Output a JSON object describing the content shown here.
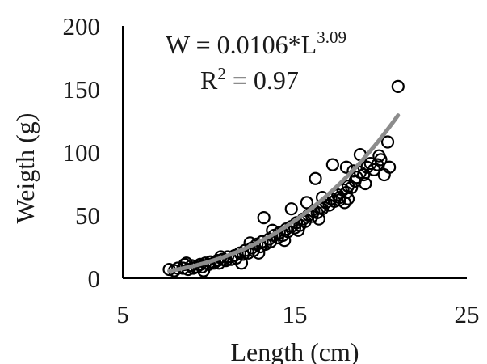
{
  "chart_data": {
    "type": "scatter",
    "xlabel": "Length (cm)",
    "ylabel": "Weigth (g)",
    "xlim": [
      5,
      25
    ],
    "ylim": [
      0,
      200
    ],
    "x_ticks": [
      "5",
      "15",
      "25"
    ],
    "y_ticks": [
      "0",
      "50",
      "100",
      "150",
      "200"
    ],
    "grid": false,
    "annotations": {
      "equation_base": "W = 0.0106*L",
      "equation_exponent": "3.09",
      "r2_base": "R",
      "r2_exponent": "2",
      "r2_value": " = 0.97"
    },
    "fit": {
      "type": "power",
      "a": 0.0106,
      "b": 3.09,
      "x_range": [
        7.7,
        21.0
      ],
      "color": "#8c8c8c"
    },
    "series": [
      {
        "marker": "open-circle",
        "color": "#000000",
        "points": [
          [
            7.7,
            7
          ],
          [
            8.0,
            6
          ],
          [
            8.2,
            8
          ],
          [
            8.5,
            8
          ],
          [
            8.6,
            11
          ],
          [
            8.8,
            7
          ],
          [
            9.0,
            10
          ],
          [
            9.1,
            8
          ],
          [
            9.3,
            9
          ],
          [
            9.5,
            11
          ],
          [
            9.6,
            9
          ],
          [
            9.8,
            12
          ],
          [
            10.0,
            11
          ],
          [
            10.1,
            13
          ],
          [
            10.3,
            12
          ],
          [
            10.5,
            14
          ],
          [
            10.6,
            12
          ],
          [
            10.8,
            15
          ],
          [
            11.0,
            14
          ],
          [
            11.1,
            17
          ],
          [
            11.3,
            15
          ],
          [
            11.5,
            18
          ],
          [
            11.6,
            16
          ],
          [
            11.8,
            20
          ],
          [
            12.0,
            19
          ],
          [
            12.1,
            22
          ],
          [
            12.3,
            20
          ],
          [
            12.5,
            24
          ],
          [
            12.6,
            22
          ],
          [
            12.8,
            27
          ],
          [
            13.0,
            25
          ],
          [
            13.1,
            29
          ],
          [
            13.3,
            27
          ],
          [
            13.5,
            31
          ],
          [
            13.6,
            29
          ],
          [
            13.8,
            34
          ],
          [
            14.0,
            32
          ],
          [
            14.1,
            36
          ],
          [
            14.3,
            34
          ],
          [
            14.5,
            39
          ],
          [
            14.6,
            37
          ],
          [
            14.8,
            41
          ],
          [
            15.0,
            40
          ],
          [
            15.1,
            44
          ],
          [
            15.3,
            42
          ],
          [
            15.5,
            47
          ],
          [
            15.6,
            45
          ],
          [
            15.8,
            50
          ],
          [
            16.0,
            49
          ],
          [
            16.1,
            53
          ],
          [
            16.3,
            52
          ],
          [
            16.5,
            56
          ],
          [
            16.6,
            55
          ],
          [
            16.8,
            60
          ],
          [
            17.0,
            58
          ],
          [
            17.1,
            63
          ],
          [
            17.3,
            61
          ],
          [
            17.5,
            66
          ],
          [
            17.6,
            64
          ],
          [
            17.8,
            70
          ],
          [
            18.0,
            68
          ],
          [
            18.1,
            73
          ],
          [
            18.3,
            72
          ],
          [
            18.5,
            77
          ],
          [
            18.6,
            80
          ],
          [
            18.8,
            84
          ],
          [
            19.0,
            82
          ],
          [
            19.2,
            88
          ],
          [
            19.4,
            91
          ],
          [
            19.6,
            86
          ],
          [
            19.8,
            90
          ],
          [
            20.0,
            94
          ],
          [
            13.2,
            48
          ],
          [
            16.2,
            79
          ],
          [
            17.2,
            90
          ],
          [
            18.0,
            88
          ],
          [
            17.6,
            62
          ],
          [
            18.1,
            63
          ],
          [
            18.8,
            98
          ],
          [
            16.6,
            64
          ],
          [
            14.8,
            55
          ],
          [
            15.7,
            60
          ],
          [
            19.9,
            97
          ],
          [
            20.2,
            82
          ],
          [
            20.4,
            108
          ],
          [
            20.5,
            88
          ],
          [
            21.0,
            152
          ],
          [
            11.9,
            12
          ],
          [
            12.9,
            20
          ],
          [
            14.4,
            30
          ],
          [
            13.7,
            38
          ],
          [
            15.2,
            38
          ],
          [
            12.4,
            28
          ],
          [
            10.7,
            17
          ],
          [
            9.7,
            6
          ],
          [
            16.4,
            47
          ],
          [
            17.9,
            60
          ],
          [
            19.1,
            75
          ],
          [
            18.4,
            85
          ],
          [
            8.7,
            12
          ]
        ]
      }
    ]
  }
}
